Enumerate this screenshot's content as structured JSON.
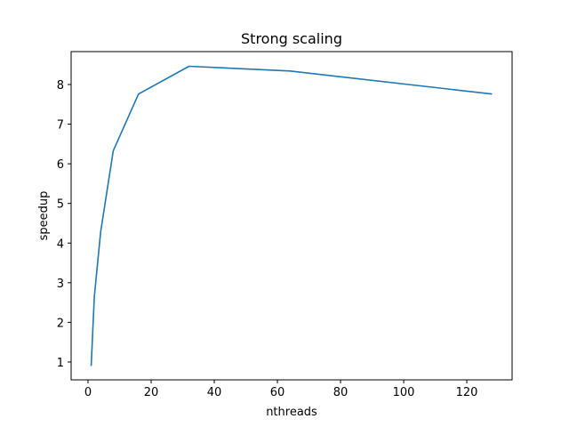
{
  "chart_data": {
    "type": "line",
    "title": "Strong scaling",
    "xlabel": "nthreads",
    "ylabel": "speedup",
    "xlim": [
      -5.35,
      134.35
    ],
    "ylim": [
      0.55,
      8.83
    ],
    "xticks": [
      0,
      20,
      40,
      60,
      80,
      100,
      120
    ],
    "yticks": [
      1,
      2,
      3,
      4,
      5,
      6,
      7,
      8
    ],
    "grid": false,
    "series": [
      {
        "x": [
          1,
          2,
          4,
          8,
          16,
          32,
          64,
          128
        ],
        "y": [
          0.9,
          2.65,
          4.28,
          6.33,
          7.76,
          8.46,
          8.34,
          7.76
        ]
      }
    ],
    "colors": {
      "line": "#1f77b4",
      "axes": "#000000"
    }
  }
}
